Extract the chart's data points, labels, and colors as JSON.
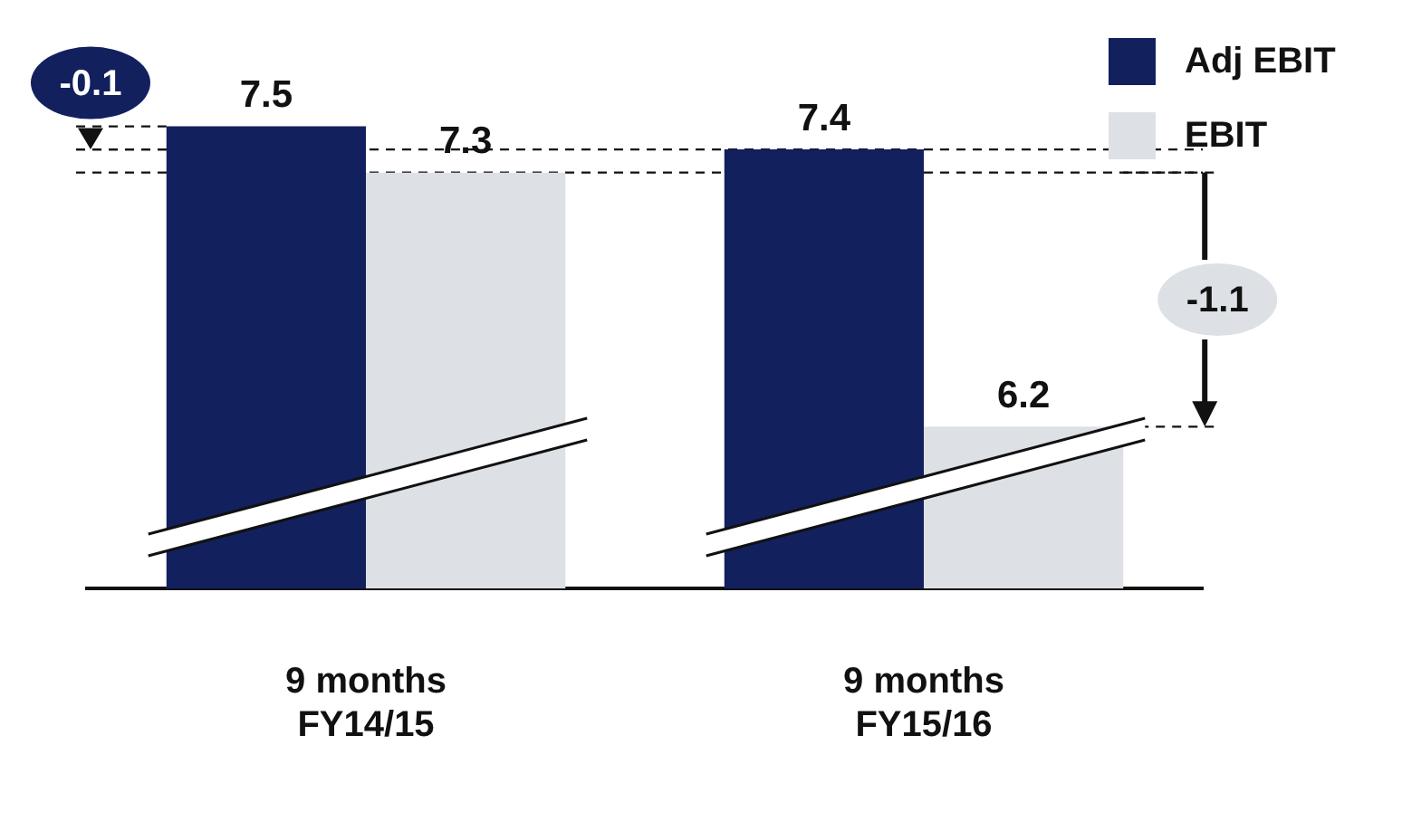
{
  "chart_data": {
    "type": "bar",
    "categories": [
      "9 months FY14/15",
      "9 months FY15/16"
    ],
    "series": [
      {
        "name": "Adj EBIT",
        "color": "#12205e",
        "values": [
          7.5,
          7.4
        ]
      },
      {
        "name": "EBIT",
        "color": "#dde1e6",
        "values": [
          7.3,
          6.2
        ]
      }
    ],
    "ref_lines": [
      {
        "axis": "y",
        "value": 7.4,
        "line_style": "dashed"
      },
      {
        "axis": "y",
        "value": 7.3,
        "line_style": "dashed"
      }
    ],
    "tick_labels": "x",
    "data_labels": true,
    "legend": "top right",
    "grid": false,
    "annotations": [
      "-0.1",
      "-1.1"
    ]
  }
}
